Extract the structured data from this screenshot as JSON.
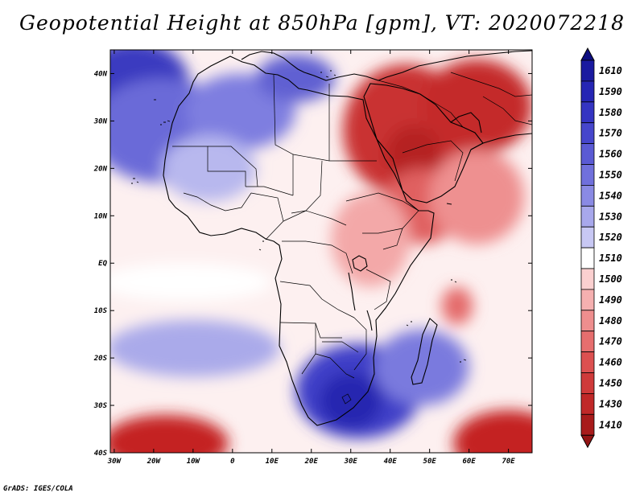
{
  "map": {
    "title": "Geopotential Height at 850hPa [gpm], VT: 2020072218",
    "credit": "GrADS: IGES/COLA",
    "lat_labels": [
      "40N",
      "30N",
      "20N",
      "10N",
      "EQ",
      "10S",
      "20S",
      "30S",
      "40S"
    ],
    "lat_values": [
      40,
      30,
      20,
      10,
      0,
      -10,
      -20,
      -30,
      -40
    ],
    "lon_labels": [
      "30W",
      "20W",
      "10W",
      "0",
      "10E",
      "20E",
      "30E",
      "40E",
      "50E",
      "60E",
      "70E"
    ],
    "lon_values": [
      -30,
      -20,
      -10,
      0,
      10,
      20,
      30,
      40,
      50,
      60,
      70
    ],
    "extent": {
      "lon_min": -31,
      "lon_max": 76,
      "lat_min": -40,
      "lat_max": 45
    }
  },
  "colorbar": {
    "labels": [
      "1610",
      "1590",
      "1580",
      "1570",
      "1560",
      "1550",
      "1540",
      "1530",
      "1520",
      "1510",
      "1500",
      "1490",
      "1480",
      "1470",
      "1460",
      "1450",
      "1430",
      "1410"
    ],
    "colors": [
      "#1a1aa0",
      "#2525b4",
      "#3434c2",
      "#4646cc",
      "#5a5ad4",
      "#7070dc",
      "#8a8ae4",
      "#a8a8ec",
      "#c8c8f4",
      "#ffffff",
      "#fbd0d0",
      "#f5b0b0",
      "#ee8e8e",
      "#e66e6e",
      "#dc5050",
      "#cf3a3a",
      "#c02828",
      "#a81b1b"
    ],
    "top_cap_color": "#0d0d80",
    "bottom_cap_color": "#931414"
  },
  "field": {
    "background_color": "#fdf0f0",
    "blobs": [
      {
        "name": "nw-atlantic-high",
        "color": "#3a3ac0",
        "lon": -25,
        "lat": 38,
        "rx": 14,
        "ry": 9
      },
      {
        "name": "nw-atlantic-mid",
        "color": "#6a6ad8",
        "lon": -18,
        "lat": 28,
        "rx": 18,
        "ry": 11
      },
      {
        "name": "sahara-ridge",
        "color": "#7e7ee0",
        "lon": 2,
        "lat": 32,
        "rx": 14,
        "ry": 8
      },
      {
        "name": "mediterranean",
        "color": "#6060d2",
        "lon": 16,
        "lat": 39,
        "rx": 10,
        "ry": 5
      },
      {
        "name": "west-sahara-pale",
        "color": "#b8b8ee",
        "lon": -6,
        "lat": 20,
        "rx": 12,
        "ry": 7
      },
      {
        "name": "arabia-low",
        "color": "#c93030",
        "lon": 44,
        "lat": 28,
        "rx": 16,
        "ry": 14
      },
      {
        "name": "arabia-core",
        "color": "#b52222",
        "lon": 46,
        "lat": 23,
        "rx": 7,
        "ry": 6
      },
      {
        "name": "iran-low",
        "color": "#c42c2c",
        "lon": 62,
        "lat": 33,
        "rx": 14,
        "ry": 10
      },
      {
        "name": "horn-red",
        "color": "#e06060",
        "lon": 48,
        "lat": 12,
        "rx": 10,
        "ry": 8
      },
      {
        "name": "arabian-sea",
        "color": "#ee9090",
        "lon": 62,
        "lat": 14,
        "rx": 12,
        "ry": 10
      },
      {
        "name": "east-africa-pink",
        "color": "#f3a8a8",
        "lon": 35,
        "lat": 5,
        "rx": 10,
        "ry": 10
      },
      {
        "name": "madagascar-low",
        "color": "#e46a6a",
        "lon": 57,
        "lat": -9,
        "rx": 4,
        "ry": 4
      },
      {
        "name": "tropical-white",
        "color": "#ffffff",
        "lon": -12,
        "lat": -4,
        "rx": 22,
        "ry": 4
      },
      {
        "name": "south-atlantic-pale",
        "color": "#aaaaea",
        "lon": -10,
        "lat": -18,
        "rx": 22,
        "ry": 6
      },
      {
        "name": "southern-africa-high",
        "color": "#4040c8",
        "lon": 32,
        "lat": -27,
        "rx": 16,
        "ry": 10
      },
      {
        "name": "southern-africa-core",
        "color": "#2828b0",
        "lon": 30,
        "lat": -29,
        "rx": 8,
        "ry": 6
      },
      {
        "name": "indian-ocean-blue",
        "color": "#7a7ade",
        "lon": 48,
        "lat": -22,
        "rx": 12,
        "ry": 8
      },
      {
        "name": "sw-cutoff-low",
        "color": "#c42424",
        "lon": -17,
        "lat": -38,
        "rx": 16,
        "ry": 6
      },
      {
        "name": "se-low",
        "color": "#c42424",
        "lon": 70,
        "lat": -38,
        "rx": 14,
        "ry": 7
      }
    ]
  }
}
